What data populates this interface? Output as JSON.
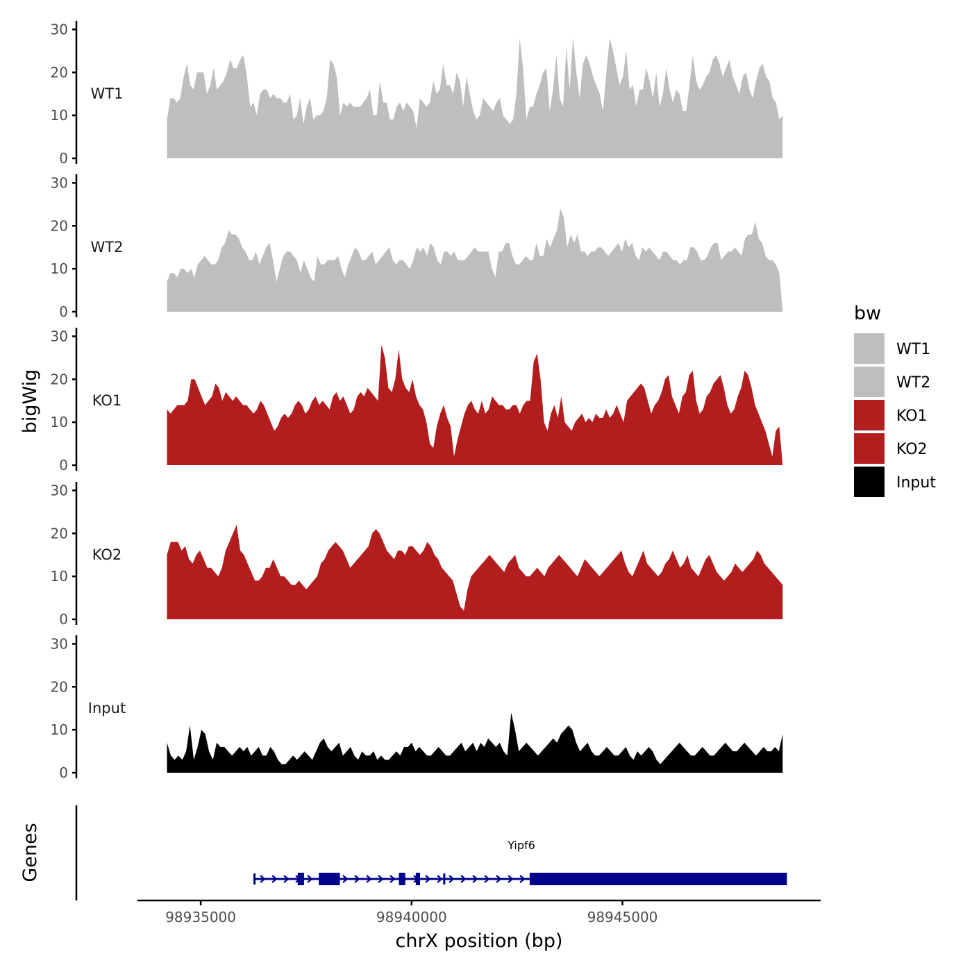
{
  "chart_data": {
    "type": "area",
    "x_axis_label": "chrX position (bp)",
    "y_axis_label": "bigWig",
    "gene_axis_label": "Genes",
    "xlim": [
      98933500,
      98949700
    ],
    "x_ticks": [
      98935000,
      98940000,
      98945000
    ],
    "x_tick_labels": [
      "98935000",
      "98940000",
      "98945000"
    ],
    "ylim": [
      0,
      32
    ],
    "y_ticks": [
      0,
      10,
      20,
      30
    ],
    "y_tick_labels": [
      "0",
      "10",
      "20",
      "30"
    ],
    "legend": {
      "title": "bw",
      "position": "right",
      "entries": [
        {
          "label": "WT1",
          "color": "#bebebe"
        },
        {
          "label": "WT2",
          "color": "#bebebe"
        },
        {
          "label": "KO1",
          "color": "#b21e1e"
        },
        {
          "label": "KO2",
          "color": "#b21e1e"
        },
        {
          "label": "Input",
          "color": "#000000"
        }
      ]
    },
    "series": [
      {
        "name": "WT1",
        "color": "#bebebe",
        "x_start": 98934200,
        "x_end": 98948800,
        "values": [
          9,
          14,
          14,
          13,
          14,
          19,
          22,
          17,
          16,
          20,
          20,
          20,
          15,
          17,
          21,
          16,
          17,
          18,
          20,
          23,
          21,
          21,
          23,
          24,
          19,
          12,
          13,
          10,
          15,
          16,
          16,
          14,
          15,
          14,
          14,
          13,
          13,
          15,
          9,
          10,
          14,
          8,
          12,
          14,
          9,
          10,
          10,
          11,
          14,
          23,
          22,
          19,
          10,
          13,
          12,
          13,
          12,
          12,
          12,
          13,
          14,
          16,
          10,
          10,
          18,
          13,
          13,
          9,
          9,
          12,
          13,
          11,
          13,
          12,
          11,
          7,
          14,
          13,
          12,
          13,
          18,
          15,
          16,
          22,
          17,
          17,
          15,
          20,
          18,
          12,
          19,
          15,
          11,
          9,
          10,
          14,
          13,
          12,
          11,
          13,
          14,
          10,
          9,
          8,
          9,
          15,
          28,
          21,
          9,
          12,
          12,
          15,
          17,
          20,
          21,
          11,
          16,
          24,
          14,
          12,
          26,
          16,
          28,
          20,
          14,
          22,
          24,
          22,
          19,
          17,
          15,
          11,
          20,
          28,
          25,
          21,
          17,
          19,
          25,
          16,
          17,
          12,
          16,
          16,
          21,
          18,
          14,
          20,
          12,
          15,
          21,
          16,
          13,
          16,
          15,
          11,
          11,
          17,
          24,
          18,
          16,
          17,
          19,
          20,
          23,
          24,
          22,
          19,
          21,
          23,
          19,
          17,
          15,
          19,
          20,
          16,
          14,
          18,
          21,
          22,
          19,
          18,
          14,
          13,
          9,
          10
        ],
        "spike_indices": [
          35,
          49,
          65,
          84,
          106,
          120,
          122,
          132,
          138,
          147,
          153,
          162,
          170,
          178
        ]
      },
      {
        "name": "WT2",
        "color": "#bebebe",
        "x_start": 98934200,
        "x_end": 98948800,
        "values": [
          7,
          9,
          9,
          8,
          10,
          10,
          9,
          10,
          8,
          11,
          12,
          13,
          12,
          11,
          11,
          12,
          15,
          16,
          19,
          18,
          18,
          17,
          15,
          14,
          12,
          12,
          14,
          11,
          13,
          15,
          16,
          12,
          7,
          10,
          13,
          14,
          14,
          13,
          12,
          9,
          12,
          10,
          8,
          7,
          13,
          11,
          11,
          12,
          12,
          12,
          13,
          10,
          8,
          11,
          13,
          15,
          14,
          12,
          12,
          13,
          14,
          11,
          12,
          13,
          14,
          15,
          12,
          11,
          12,
          12,
          11,
          10,
          12,
          15,
          14,
          15,
          13,
          16,
          15,
          12,
          11,
          14,
          14,
          13,
          14,
          12,
          12,
          12,
          13,
          14,
          15,
          14,
          14,
          14,
          14,
          10,
          8,
          14,
          14,
          16,
          16,
          13,
          11,
          11,
          12,
          13,
          12,
          12,
          16,
          13,
          13,
          17,
          15,
          17,
          19,
          24,
          22,
          15,
          18,
          16,
          18,
          14,
          14,
          13,
          14,
          14,
          15,
          15,
          14,
          13,
          14,
          15,
          16,
          14,
          17,
          15,
          16,
          13,
          12,
          15,
          14,
          15,
          14,
          13,
          12,
          14,
          14,
          13,
          12,
          12,
          11,
          12,
          12,
          15,
          15,
          14,
          12,
          12,
          13,
          15,
          16,
          16,
          12,
          13,
          14,
          14,
          15,
          14,
          13,
          17,
          18,
          18,
          21,
          17,
          16,
          13,
          12,
          12,
          11,
          9,
          0
        ],
        "spike_indices": [
          20,
          30,
          41,
          45,
          58,
          62,
          82,
          86,
          95,
          105,
          115,
          116,
          120,
          142,
          160,
          172
        ]
      },
      {
        "name": "KO1",
        "color": "#b21e1e",
        "x_start": 98934200,
        "x_end": 98948800,
        "values": [
          13,
          12,
          13,
          14,
          14,
          14,
          15,
          20,
          20,
          18,
          16,
          14,
          15,
          16,
          19,
          18,
          15,
          17,
          16,
          15,
          16,
          15,
          14,
          14,
          13,
          12,
          13,
          15,
          14,
          12,
          10,
          8,
          9,
          11,
          12,
          11,
          12,
          14,
          15,
          14,
          12,
          13,
          15,
          16,
          14,
          15,
          14,
          13,
          16,
          17,
          15,
          16,
          14,
          12,
          13,
          16,
          17,
          16,
          18,
          17,
          16,
          15,
          28,
          25,
          18,
          17,
          20,
          27,
          20,
          18,
          17,
          20,
          16,
          14,
          13,
          10,
          5,
          4,
          9,
          12,
          14,
          11,
          9,
          2,
          6,
          9,
          12,
          14,
          15,
          13,
          12,
          15,
          12,
          13,
          16,
          15,
          14,
          14,
          13,
          13,
          14,
          14,
          12,
          14,
          15,
          15,
          24,
          26,
          20,
          10,
          8,
          12,
          14,
          11,
          16,
          10,
          9,
          8,
          10,
          11,
          12,
          10,
          11,
          10,
          12,
          11,
          11,
          13,
          11,
          12,
          14,
          12,
          10,
          15,
          16,
          17,
          18,
          19,
          18,
          15,
          12,
          14,
          15,
          17,
          20,
          21,
          16,
          14,
          12,
          16,
          17,
          21,
          22,
          15,
          12,
          13,
          16,
          17,
          19,
          20,
          21,
          18,
          14,
          12,
          13,
          16,
          18,
          22,
          21,
          18,
          14,
          12,
          10,
          8,
          5,
          2,
          8,
          9,
          0
        ],
        "spike_indices": [
          23,
          41,
          46,
          54,
          67,
          69,
          80,
          93,
          110,
          118,
          125,
          135,
          145,
          158,
          168
        ]
      },
      {
        "name": "KO2",
        "color": "#b21e1e",
        "x_start": 98934200,
        "x_end": 98948800,
        "values": [
          15,
          18,
          18,
          18,
          16,
          17,
          14,
          13,
          15,
          16,
          14,
          12,
          12,
          11,
          10,
          12,
          16,
          18,
          20,
          22,
          16,
          15,
          13,
          11,
          9,
          9,
          10,
          12,
          12,
          14,
          12,
          10,
          10,
          9,
          8,
          8,
          9,
          8,
          7,
          8,
          9,
          10,
          13,
          14,
          16,
          17,
          18,
          17,
          16,
          14,
          12,
          13,
          14,
          15,
          16,
          17,
          20,
          21,
          20,
          18,
          16,
          15,
          14,
          16,
          16,
          15,
          17,
          17,
          16,
          15,
          16,
          18,
          17,
          15,
          14,
          12,
          11,
          10,
          9,
          6,
          3,
          2,
          7,
          10,
          11,
          12,
          13,
          14,
          15,
          14,
          13,
          12,
          11,
          13,
          14,
          15,
          12,
          11,
          10,
          10,
          11,
          12,
          11,
          10,
          12,
          13,
          14,
          15,
          14,
          13,
          12,
          11,
          10,
          12,
          14,
          13,
          12,
          11,
          10,
          11,
          12,
          13,
          14,
          15,
          16,
          13,
          11,
          10,
          12,
          14,
          16,
          13,
          12,
          11,
          10,
          11,
          13,
          14,
          16,
          14,
          12,
          13,
          15,
          12,
          11,
          10,
          12,
          14,
          15,
          13,
          11,
          10,
          9,
          10,
          11,
          13,
          12,
          11,
          12,
          13,
          14,
          16,
          15,
          13,
          12,
          11,
          10,
          9,
          8
        ],
        "spike_indices": [
          13,
          27,
          39,
          52,
          65,
          75,
          95,
          100,
          110,
          125,
          135,
          140,
          150,
          160,
          170
        ]
      },
      {
        "name": "Input",
        "color": "#000000",
        "x_start": 98934200,
        "x_end": 98948800,
        "values": [
          7,
          4,
          3,
          4,
          3,
          5,
          11,
          3,
          6,
          10,
          9,
          5,
          3,
          7,
          6,
          6,
          5,
          4,
          5,
          6,
          5,
          6,
          4,
          5,
          6,
          4,
          4,
          6,
          5,
          3,
          2,
          2,
          3,
          4,
          3,
          4,
          5,
          4,
          3,
          5,
          7,
          8,
          6,
          5,
          6,
          7,
          4,
          5,
          6,
          4,
          3,
          5,
          4,
          4,
          5,
          3,
          4,
          3,
          3,
          4,
          5,
          4,
          6,
          6,
          7,
          5,
          6,
          5,
          4,
          4,
          5,
          6,
          5,
          4,
          4,
          5,
          6,
          7,
          5,
          6,
          7,
          5,
          7,
          6,
          8,
          7,
          6,
          7,
          5,
          4,
          14,
          10,
          5,
          6,
          7,
          6,
          5,
          4,
          5,
          6,
          7,
          8,
          7,
          9,
          10,
          11,
          10,
          7,
          5,
          6,
          7,
          5,
          4,
          4,
          5,
          6,
          5,
          4,
          4,
          5,
          6,
          4,
          3,
          5,
          4,
          5,
          6,
          5,
          3,
          2,
          3,
          4,
          5,
          6,
          7,
          6,
          5,
          4,
          4,
          5,
          6,
          5,
          4,
          4,
          5,
          6,
          7,
          6,
          5,
          5,
          6,
          7,
          6,
          5,
          4,
          5,
          6,
          5,
          5,
          6,
          5,
          9
        ],
        "spike_indices": [
          33,
          52,
          55,
          61,
          69,
          78,
          82,
          89,
          101,
          112,
          118,
          125,
          135,
          146,
          153
        ]
      }
    ],
    "gene_track": {
      "gene_name": "Yipf6",
      "color": "#00008b",
      "strand": "+",
      "start": 98936250,
      "end": 98948900,
      "exons": [
        {
          "start": 98936250,
          "end": 98936300,
          "type": "tick"
        },
        {
          "start": 98937300,
          "end": 98937450,
          "type": "small"
        },
        {
          "start": 98937800,
          "end": 98938300,
          "type": "utr"
        },
        {
          "start": 98939700,
          "end": 98939850,
          "type": "small"
        },
        {
          "start": 98940100,
          "end": 98940200,
          "type": "small"
        },
        {
          "start": 98940750,
          "end": 98940780,
          "type": "tick"
        },
        {
          "start": 98942800,
          "end": 98948900,
          "type": "large"
        }
      ]
    }
  }
}
